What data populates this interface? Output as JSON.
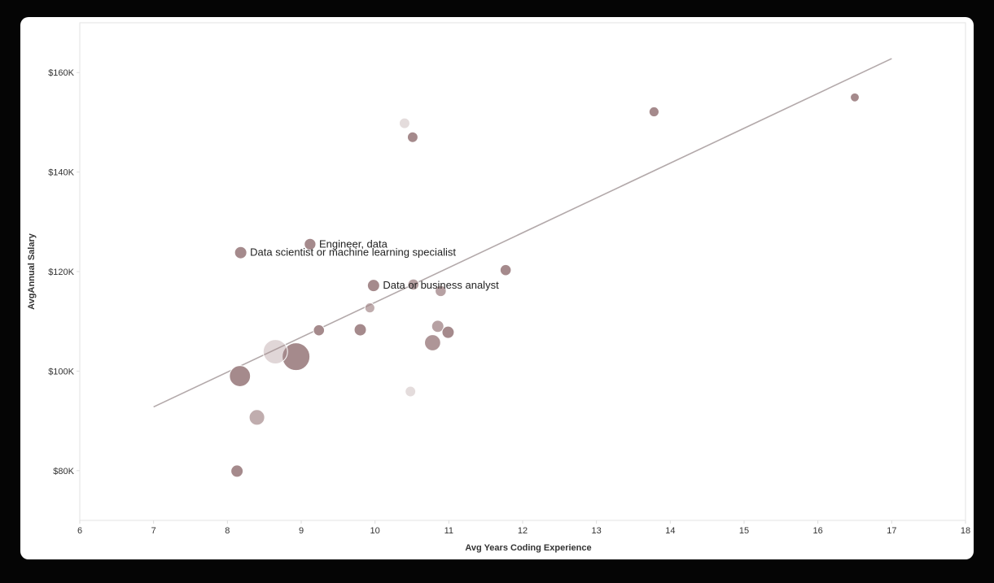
{
  "chart_data": {
    "type": "scatter",
    "title": "",
    "xlabel": "Avg Years Coding Experience",
    "ylabel": "AvgAnnual Salary",
    "xlim": [
      6,
      18
    ],
    "ylim": [
      70000,
      170000
    ],
    "x_ticks": [
      "6",
      "7",
      "8",
      "9",
      "10",
      "11",
      "12",
      "13",
      "14",
      "15",
      "16",
      "17",
      "18"
    ],
    "y_ticks": [
      {
        "value": 80000,
        "label": "$80K"
      },
      {
        "value": 100000,
        "label": "$100K"
      },
      {
        "value": 120000,
        "label": "$120K"
      },
      {
        "value": 140000,
        "label": "$140K"
      },
      {
        "value": 160000,
        "label": "$160K"
      }
    ],
    "grid": false,
    "trendline": {
      "x": [
        7,
        17
      ],
      "y": [
        92800,
        162800
      ]
    },
    "colors": {
      "point_fill": "#a58a8c",
      "point_stroke": "#ffffff",
      "trendline": "#b3a9aa",
      "axis": "#dddddd",
      "background": "#ffffff"
    },
    "points": [
      {
        "x": 8.17,
        "y": 99000,
        "size": 3.8
      },
      {
        "x": 8.93,
        "y": 102900,
        "size": 5
      },
      {
        "x": 8.65,
        "y": 103900,
        "size": 4.4,
        "opacity": 0.35
      },
      {
        "x": 8.4,
        "y": 90700,
        "size": 2.8,
        "opacity": 0.7
      },
      {
        "x": 8.13,
        "y": 79900,
        "size": 2.2
      },
      {
        "x": 8.18,
        "y": 123800,
        "size": 2.2,
        "label": "Data scientist or machine learning specialist"
      },
      {
        "x": 9.12,
        "y": 125500,
        "size": 2.1,
        "label": "Engineer, data"
      },
      {
        "x": 9.24,
        "y": 108200,
        "size": 2
      },
      {
        "x": 9.8,
        "y": 108300,
        "size": 2.2
      },
      {
        "x": 9.93,
        "y": 112700,
        "size": 1.8,
        "opacity": 0.7
      },
      {
        "x": 9.98,
        "y": 117200,
        "size": 2.2,
        "label": "Data or business analyst"
      },
      {
        "x": 10.4,
        "y": 149800,
        "size": 1.9,
        "opacity": 0.3
      },
      {
        "x": 10.51,
        "y": 147000,
        "size": 1.9
      },
      {
        "x": 10.48,
        "y": 95900,
        "size": 1.9,
        "opacity": 0.3
      },
      {
        "x": 10.52,
        "y": 117400,
        "size": 2,
        "opacity": 0.8
      },
      {
        "x": 10.89,
        "y": 116100,
        "size": 2,
        "opacity": 0.8
      },
      {
        "x": 10.78,
        "y": 105700,
        "size": 2.9,
        "opacity": 0.9
      },
      {
        "x": 10.85,
        "y": 109000,
        "size": 2.2,
        "opacity": 0.8
      },
      {
        "x": 10.99,
        "y": 107800,
        "size": 2.2
      },
      {
        "x": 11.77,
        "y": 120300,
        "size": 2
      },
      {
        "x": 13.78,
        "y": 152100,
        "size": 1.8
      },
      {
        "x": 16.5,
        "y": 155000,
        "size": 1.6
      }
    ]
  }
}
